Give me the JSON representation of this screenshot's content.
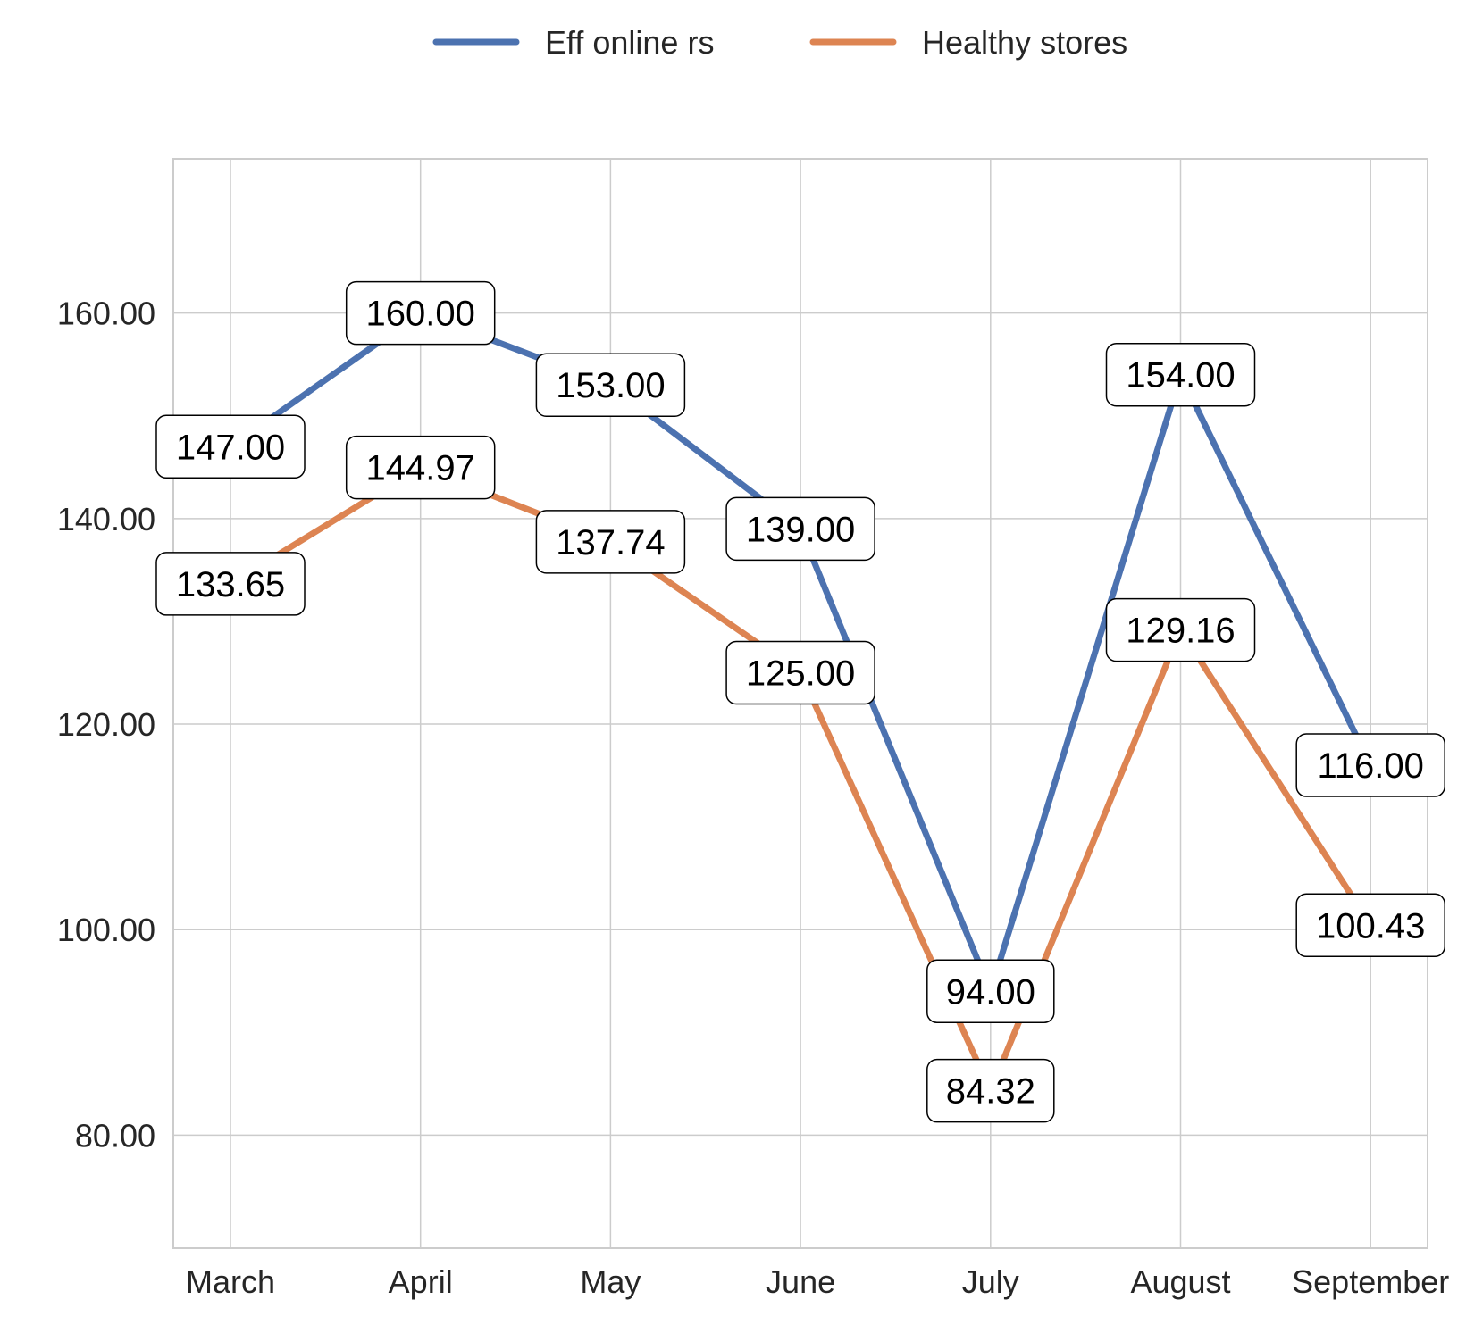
{
  "chart_data": {
    "type": "line",
    "categories": [
      "March",
      "April",
      "May",
      "June",
      "July",
      "August",
      "September"
    ],
    "series": [
      {
        "name": "Eff online rs",
        "color": "#4c72b0",
        "values": [
          147.0,
          160.0,
          153.0,
          139.0,
          94.0,
          154.0,
          116.0
        ],
        "labels": [
          "147.00",
          "160.00",
          "153.00",
          "139.00",
          "94.00",
          "154.00",
          "116.00"
        ]
      },
      {
        "name": "Healthy stores",
        "color": "#dd8452",
        "values": [
          133.65,
          144.97,
          137.74,
          125.0,
          84.32,
          129.16,
          100.43
        ],
        "labels": [
          "133.65",
          "144.97",
          "137.74",
          "125.00",
          "84.32",
          "129.16",
          "100.43"
        ]
      }
    ],
    "yticks": [
      80,
      100,
      120,
      140,
      160
    ],
    "ytick_labels": [
      "80.00",
      "100.00",
      "120.00",
      "140.00",
      "160.00"
    ],
    "ylim": [
      69,
      175
    ],
    "grid": true,
    "legend_position": "top-center"
  }
}
